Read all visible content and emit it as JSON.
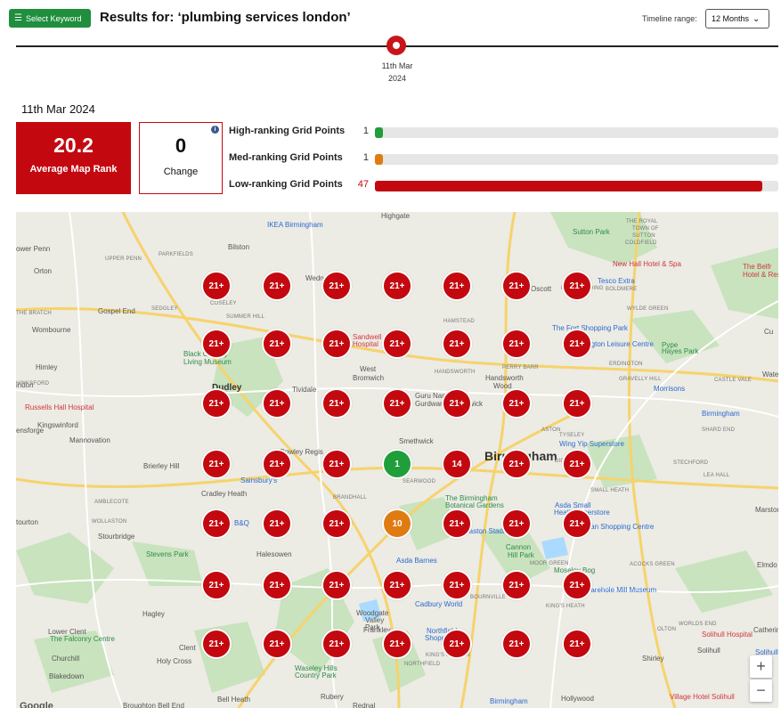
{
  "header": {
    "select_keyword_label": "Select Keyword",
    "results_title": "Results for: ‘plumbing services london’",
    "timeline_range_label": "Timeline range:",
    "timeline_range_value": "12 Months"
  },
  "timeline": {
    "point_date_line1": "11th Mar",
    "point_date_line2": "2024"
  },
  "summary": {
    "date_heading": "11th Mar 2024",
    "average_map_rank": "20.2",
    "average_map_rank_label": "Average Map Rank",
    "change_value": "0",
    "change_label": "Change",
    "rankings": [
      {
        "label": "High-ranking Grid Points",
        "count": "1",
        "fraction": 0.02,
        "color": "#1f9e3a"
      },
      {
        "label": "Med-ranking Grid Points",
        "count": "1",
        "fraction": 0.02,
        "color": "#e07b12"
      },
      {
        "label": "Low-ranking Grid Points",
        "count": "47",
        "fraction": 0.96,
        "color": "#c3090f"
      }
    ]
  },
  "map": {
    "colors": {
      "low": "#c3090f",
      "med": "#e07b12",
      "high": "#1f9e3a"
    },
    "grid": [
      [
        "21+",
        "21+",
        "21+",
        "21+",
        "21+",
        "21+",
        "21+"
      ],
      [
        "21+",
        "21+",
        "21+",
        "21+",
        "21+",
        "21+",
        "21+"
      ],
      [
        "21+",
        "21+",
        "21+",
        "21+",
        "21+",
        "21+",
        "21+"
      ],
      [
        "21+",
        "21+",
        "21+",
        "1",
        "14",
        "21+",
        "21+"
      ],
      [
        "21+",
        "21+",
        "21+",
        "10",
        "21+",
        "21+",
        "21+"
      ],
      [
        "21+",
        "21+",
        "21+",
        "21+",
        "21+",
        "21+",
        "21+"
      ],
      [
        "21+",
        "21+",
        "21+",
        "21+",
        "21+",
        "21+",
        "21+"
      ]
    ],
    "places": [
      {
        "text": "Highgate",
        "cls": ""
      },
      {
        "text": "IKEA Birmingham",
        "cls": "poi"
      },
      {
        "text": "THE ROYAL",
        "cls": "sm"
      },
      {
        "text": "TOWN OF",
        "cls": "sm"
      },
      {
        "text": "SUTTON",
        "cls": "sm"
      },
      {
        "text": "COLDFIELD",
        "cls": "sm"
      },
      {
        "text": "Sutton Park",
        "cls": "park"
      },
      {
        "text": "ower Penn",
        "cls": ""
      },
      {
        "text": "Bilston",
        "cls": ""
      },
      {
        "text": "Orton",
        "cls": ""
      },
      {
        "text": "Gospel End",
        "cls": ""
      },
      {
        "text": "Wombourne",
        "cls": ""
      },
      {
        "text": "Himley",
        "cls": ""
      },
      {
        "text": "indon",
        "cls": ""
      },
      {
        "text": "Dudley",
        "cls": "bold"
      },
      {
        "text": "West",
        "cls": ""
      },
      {
        "text": "Bromwich",
        "cls": ""
      },
      {
        "text": "Handsworth",
        "cls": ""
      },
      {
        "text": "Wood",
        "cls": ""
      },
      {
        "text": "Russells Hall Hospital",
        "cls": "hosp"
      },
      {
        "text": "Kingswinford",
        "cls": ""
      },
      {
        "text": "Mannovation",
        "cls": ""
      },
      {
        "text": "ensforge",
        "cls": ""
      },
      {
        "text": "Brierley Hill",
        "cls": ""
      },
      {
        "text": "Cradley Heath",
        "cls": ""
      },
      {
        "text": "tourton",
        "cls": ""
      },
      {
        "text": "Stourbridge",
        "cls": ""
      },
      {
        "text": "Stevens Park",
        "cls": "park"
      },
      {
        "text": "Halesowen",
        "cls": ""
      },
      {
        "text": "Hagley",
        "cls": ""
      },
      {
        "text": "Lower Clent",
        "cls": ""
      },
      {
        "text": "Clent",
        "cls": ""
      },
      {
        "text": "The Falconry Centre",
        "cls": "park"
      },
      {
        "text": "Churchill",
        "cls": ""
      },
      {
        "text": "Holy Cross",
        "cls": ""
      },
      {
        "text": "Blakedown",
        "cls": ""
      },
      {
        "text": "Rubery",
        "cls": ""
      },
      {
        "text": "Frankley",
        "cls": ""
      },
      {
        "text": "Woodgate",
        "cls": ""
      },
      {
        "text": "Valley",
        "cls": ""
      },
      {
        "text": "Park",
        "cls": ""
      },
      {
        "text": "Waseley Hills",
        "cls": "park"
      },
      {
        "text": "Country Park",
        "cls": "park"
      },
      {
        "text": "Smethwick",
        "cls": ""
      },
      {
        "text": "Sainsbury's",
        "cls": "poi"
      },
      {
        "text": "B&Q",
        "cls": "poi"
      },
      {
        "text": "Asda Barnes",
        "cls": "poi"
      },
      {
        "text": "Cadbury World",
        "cls": "poi"
      },
      {
        "text": "Northfield",
        "cls": "poi"
      },
      {
        "text": "Shopping",
        "cls": "poi"
      },
      {
        "text": "Birmingham",
        "cls": "big"
      },
      {
        "text": "The Birmingham",
        "cls": "park"
      },
      {
        "text": "Botanical Gardens",
        "cls": "park"
      },
      {
        "text": "Edgbaston Stadium",
        "cls": "poi"
      },
      {
        "text": "Cannon",
        "cls": "park"
      },
      {
        "text": "Hill Park",
        "cls": "park"
      },
      {
        "text": "Moseley Bog",
        "cls": "park"
      },
      {
        "text": "Sarehole Mill Museum",
        "cls": "poi"
      },
      {
        "text": "Asda Small",
        "cls": "poi"
      },
      {
        "text": "Heath Superstore",
        "cls": "poi"
      },
      {
        "text": "Swan Shopping Centre",
        "cls": "poi"
      },
      {
        "text": "TYSELEY",
        "cls": "sm"
      },
      {
        "text": "Wing Yip Superstore",
        "cls": "poi"
      },
      {
        "text": "Birmingham",
        "cls": "poi"
      },
      {
        "text": "Morrisons",
        "cls": "poi"
      },
      {
        "text": "The Fort Shopping Park",
        "cls": "poi"
      },
      {
        "text": "Erdington Leisure Centre",
        "cls": "poi"
      },
      {
        "text": "Pype",
        "cls": "park"
      },
      {
        "text": "Hayes Park",
        "cls": "park"
      },
      {
        "text": "Oscott",
        "cls": ""
      },
      {
        "text": "Tesco Extra",
        "cls": "poi"
      },
      {
        "text": "New Hall Hotel & Spa",
        "cls": "hosp"
      },
      {
        "text": "The Belfr",
        "cls": "hosp"
      },
      {
        "text": "Hotel & Resor",
        "cls": "hosp"
      },
      {
        "text": "Solihull Hospital",
        "cls": "hosp"
      },
      {
        "text": "Catherin",
        "cls": ""
      },
      {
        "text": "Shirley",
        "cls": ""
      },
      {
        "text": "Solihull",
        "cls": ""
      },
      {
        "text": "Village Hotel Solihull",
        "cls": "hosp"
      },
      {
        "text": "Hollywood",
        "cls": ""
      },
      {
        "text": "Marston",
        "cls": ""
      },
      {
        "text": "Elmdo",
        "cls": ""
      },
      {
        "text": "Cu",
        "cls": ""
      },
      {
        "text": "Water",
        "cls": ""
      },
      {
        "text": "Black Country",
        "cls": "park"
      },
      {
        "text": "Living Museum",
        "cls": "park"
      },
      {
        "text": "Sandwell",
        "cls": "hosp"
      },
      {
        "text": "Hospital",
        "cls": "hosp"
      },
      {
        "text": "Guru Nanak",
        "cls": ""
      },
      {
        "text": "Gurdwara Smethwick",
        "cls": ""
      },
      {
        "text": "Rowley Regis",
        "cls": ""
      },
      {
        "text": "Tividale",
        "cls": ""
      },
      {
        "text": "Wednesbury",
        "cls": ""
      },
      {
        "text": "HANDSWORTH",
        "cls": "sm"
      },
      {
        "text": "ASTON",
        "cls": "sm"
      },
      {
        "text": "DIGBETH",
        "cls": "sm"
      },
      {
        "text": "SMALL HEATH",
        "cls": "sm"
      },
      {
        "text": "BRANDHALL",
        "cls": "sm"
      },
      {
        "text": "SEARWOOD",
        "cls": "sm"
      },
      {
        "text": "KING'S HEATH",
        "cls": "sm"
      },
      {
        "text": "MOOR GREEN",
        "cls": "sm"
      },
      {
        "text": "BOURNVILLE",
        "cls": "sm"
      },
      {
        "text": "NORTHFIELD",
        "cls": "sm"
      },
      {
        "text": "KING'S NORTON",
        "cls": "sm"
      },
      {
        "text": "ERDINGTON",
        "cls": "sm"
      },
      {
        "text": "KINGSTANDING",
        "cls": "sm"
      },
      {
        "text": "BOLDMERE",
        "cls": "sm"
      },
      {
        "text": "WYLDE GREEN",
        "cls": "sm"
      },
      {
        "text": "STECHFORD",
        "cls": "sm"
      },
      {
        "text": "LEA HALL",
        "cls": "sm"
      },
      {
        "text": "ACOCKS GREEN",
        "cls": "sm"
      },
      {
        "text": "OLTON",
        "cls": "sm"
      },
      {
        "text": "SHARD END",
        "cls": "sm"
      },
      {
        "text": "CASTLE VALE",
        "cls": "sm"
      },
      {
        "text": "GRAVELLY HILL",
        "cls": "sm"
      },
      {
        "text": "PERRY BARR",
        "cls": "sm"
      },
      {
        "text": "HAMSTEAD",
        "cls": "sm"
      },
      {
        "text": "WORLDS END",
        "cls": "sm"
      },
      {
        "text": "AMBLECOTE",
        "cls": "sm"
      },
      {
        "text": "WOLLASTON",
        "cls": "sm"
      },
      {
        "text": "HINKSFORD",
        "cls": "sm"
      },
      {
        "text": "SEDGLEY",
        "cls": "sm"
      },
      {
        "text": "COSELEY",
        "cls": "sm"
      },
      {
        "text": "SUMMER HILL",
        "cls": "sm"
      },
      {
        "text": "UPPER PENN",
        "cls": "sm"
      },
      {
        "text": "PARKFIELDS",
        "cls": "sm"
      },
      {
        "text": "THE BRATCH",
        "cls": "sm"
      },
      {
        "text": "Google",
        "cls": ""
      },
      {
        "text": "Birmingham",
        "cls": "poi"
      },
      {
        "text": "Solihull",
        "cls": "poi"
      },
      {
        "text": "Broughton Bell End",
        "cls": ""
      },
      {
        "text": "Bell Heath",
        "cls": ""
      },
      {
        "text": "Rednal",
        "cls": ""
      }
    ],
    "zoom_in": "+",
    "zoom_out": "−"
  }
}
